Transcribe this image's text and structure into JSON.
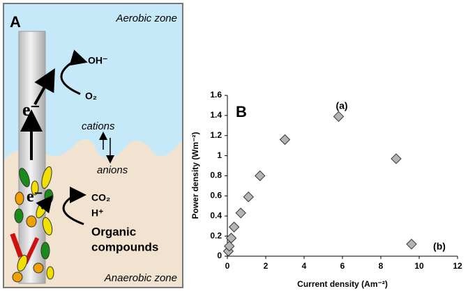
{
  "panel_a": {
    "label": "A",
    "aerobic": "Aerobic zone",
    "anaerobic": "Anaerobic zone",
    "oh": "OH⁻",
    "o2": "O₂",
    "electron_top": "e⁻",
    "electron_bottom": "e⁻",
    "cations": "cations",
    "anions": "anions",
    "co2": "CO₂",
    "h": "H⁺",
    "organic": "Organic",
    "compounds": "compounds"
  },
  "chart_data": {
    "type": "scatter",
    "panel_label": "B",
    "x_label": "Current density (Am⁻²)",
    "y_label": "Power density (Wm⁻²)",
    "x": [
      0.05,
      0.1,
      0.2,
      0.35,
      0.7,
      1.1,
      1.7,
      3.0,
      5.8,
      8.8,
      9.6
    ],
    "values": [
      0.05,
      0.1,
      0.18,
      0.29,
      0.43,
      0.59,
      0.8,
      1.16,
      1.39,
      0.97,
      0.12
    ],
    "color": "#b4b4b4",
    "annotations": [
      "(a)",
      "(b)"
    ],
    "xlim": [
      0,
      12
    ],
    "xticks": [
      0,
      2,
      4,
      6,
      8,
      10,
      12
    ],
    "ylim": [
      0,
      1.6
    ],
    "yticks": [
      0,
      0.2,
      0.4,
      0.6,
      0.8,
      1,
      1.2,
      1.4,
      1.6
    ],
    "grid": false
  }
}
